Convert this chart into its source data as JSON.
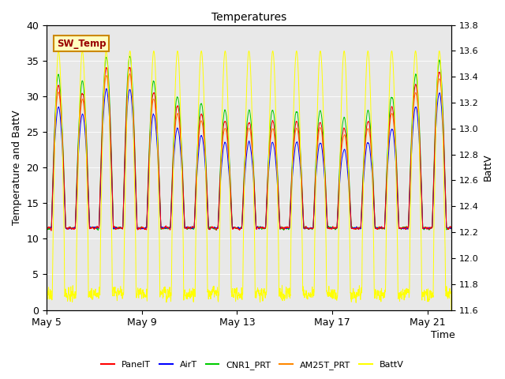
{
  "title": "Temperatures",
  "xlabel": "Time",
  "ylabel_left": "Temperature and BattV",
  "ylabel_right": "BattV",
  "ylim_left": [
    0,
    40
  ],
  "ylim_right": [
    11.6,
    13.8
  ],
  "xtick_labels": [
    "May 5",
    "May 9",
    "May 13",
    "May 17",
    "May 21"
  ],
  "xtick_positions": [
    0,
    4,
    8,
    12,
    16
  ],
  "legend_labels": [
    "PanelT",
    "AirT",
    "CNR1_PRT",
    "AM25T_PRT",
    "BattV"
  ],
  "legend_colors": [
    "#ff0000",
    "#0000ff",
    "#00cc00",
    "#ff8800",
    "#ffff00"
  ],
  "sw_temp_box_facecolor": "#ffffc0",
  "sw_temp_text_color": "#990000",
  "sw_temp_border_color": "#cc8800",
  "background_color": "#e8e8e8",
  "n_days": 17,
  "samples_per_day": 144
}
